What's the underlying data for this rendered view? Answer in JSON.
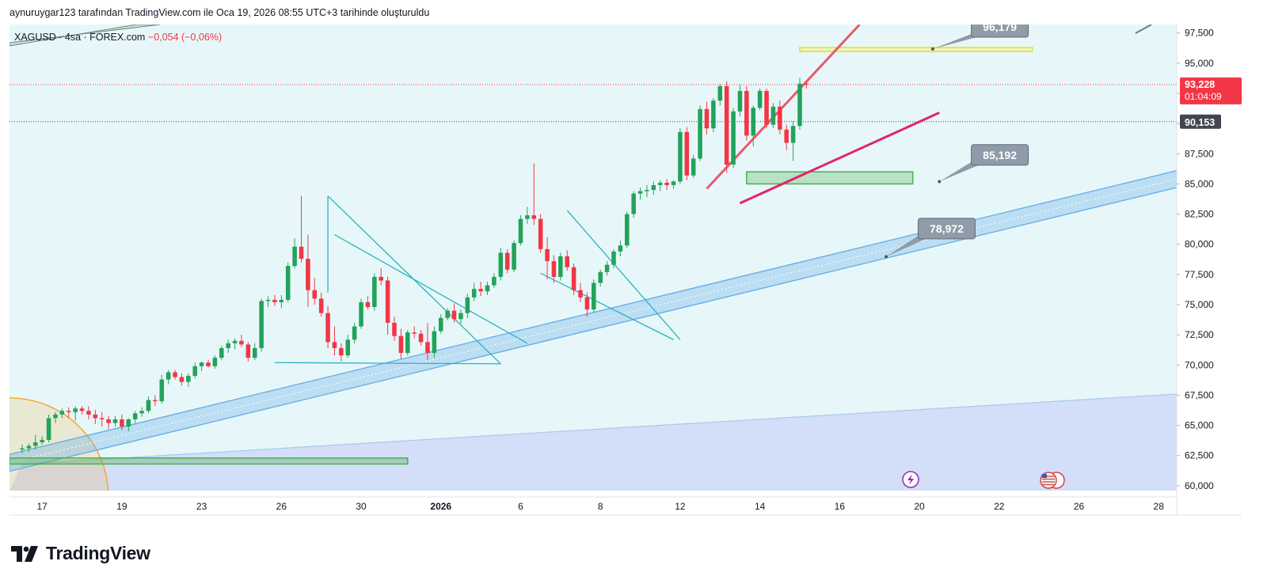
{
  "header": {
    "caption": "aynuruygar123 tarafından TradingView.com ile Oca 19, 2026 08:55 UTC+3 tarihinde oluşturuldu"
  },
  "legend": {
    "symbol": "XAGUSD · 4sa · FOREX.com",
    "change": "−0,054 (−0,06%)"
  },
  "brand": {
    "name": "TradingView"
  },
  "colors": {
    "up": "#22a35a",
    "down": "#f23645",
    "channel": "#6aaee8",
    "wedge_upper": "#e85a6e",
    "wedge_lower": "#e0256a",
    "triangle": "#2bb3c0",
    "zone_green": "#4caf50",
    "zone_yellow": "#e6e64a",
    "fill_cyan": "#e7f7f9",
    "fill_blue": "#d2dcf9",
    "callout_grey": "#8f9ba8",
    "price_current": "#f23645",
    "price_ref": "#434651",
    "arc": "#f5a623"
  },
  "chart_data": {
    "type": "candlestick",
    "symbol": "XAGUSD",
    "timeframe": "4sa",
    "source": "FOREX.com",
    "y_range": [
      59600,
      98200
    ],
    "y_ticks": [
      {
        "value": 97500,
        "label": "97,500"
      },
      {
        "value": 95000,
        "label": "95,000"
      },
      {
        "value": 92500,
        "label": "92,500"
      },
      {
        "value": 90000,
        "label": "90,000"
      },
      {
        "value": 87500,
        "label": "87,500"
      },
      {
        "value": 85000,
        "label": "85,000"
      },
      {
        "value": 82500,
        "label": "82,500"
      },
      {
        "value": 80000,
        "label": "80,000"
      },
      {
        "value": 77500,
        "label": "77,500"
      },
      {
        "value": 75000,
        "label": "75,000"
      },
      {
        "value": 72500,
        "label": "72,500"
      },
      {
        "value": 70000,
        "label": "70,000"
      },
      {
        "value": 67500,
        "label": "67,500"
      },
      {
        "value": 65000,
        "label": "65,000"
      },
      {
        "value": 62500,
        "label": "62,500"
      },
      {
        "value": 60000,
        "label": "60,000"
      }
    ],
    "x_ticks": [
      {
        "index": 3,
        "label": "17",
        "bold": false
      },
      {
        "index": 15,
        "label": "19",
        "bold": false
      },
      {
        "index": 27,
        "label": "23",
        "bold": false
      },
      {
        "index": 39,
        "label": "26",
        "bold": false
      },
      {
        "index": 51,
        "label": "30",
        "bold": false
      },
      {
        "index": 63,
        "label": "2026",
        "bold": true
      },
      {
        "index": 75,
        "label": "6",
        "bold": false
      },
      {
        "index": 87,
        "label": "8",
        "bold": false
      },
      {
        "index": 99,
        "label": "12",
        "bold": false
      },
      {
        "index": 111,
        "label": "14",
        "bold": false
      },
      {
        "index": 123,
        "label": "16",
        "bold": false
      },
      {
        "index": 135,
        "label": "20",
        "bold": false
      },
      {
        "index": 147,
        "label": "22",
        "bold": false
      },
      {
        "index": 159,
        "label": "26",
        "bold": false
      },
      {
        "index": 171,
        "label": "28",
        "bold": false
      }
    ],
    "x_index_range": [
      0,
      173
    ],
    "candles": [
      [
        63000,
        63400,
        62700,
        63100
      ],
      [
        63100,
        63500,
        62800,
        63300
      ],
      [
        63300,
        64200,
        63000,
        63600
      ],
      [
        63600,
        64100,
        63400,
        63800
      ],
      [
        63800,
        65900,
        63600,
        65600
      ],
      [
        65600,
        66100,
        65200,
        65900
      ],
      [
        65900,
        66400,
        65600,
        66200
      ],
      [
        66200,
        66500,
        65600,
        66100
      ],
      [
        66100,
        66600,
        65400,
        66400
      ],
      [
        66400,
        66600,
        65900,
        66200
      ],
      [
        66200,
        66600,
        65500,
        65900
      ],
      [
        65900,
        66300,
        65100,
        65600
      ],
      [
        65600,
        66100,
        64900,
        65500
      ],
      [
        65500,
        65800,
        64700,
        65200
      ],
      [
        65200,
        65800,
        64900,
        65500
      ],
      [
        65500,
        65900,
        64600,
        64900
      ],
      [
        64900,
        65600,
        64500,
        65500
      ],
      [
        65500,
        66200,
        65200,
        66000
      ],
      [
        66000,
        66500,
        65700,
        66200
      ],
      [
        66200,
        67400,
        66000,
        67100
      ],
      [
        67100,
        67500,
        66600,
        67000
      ],
      [
        67000,
        69200,
        66800,
        68800
      ],
      [
        68800,
        69600,
        68400,
        69400
      ],
      [
        69400,
        69600,
        68800,
        69000
      ],
      [
        69000,
        69300,
        68300,
        68600
      ],
      [
        68600,
        69300,
        68200,
        69100
      ],
      [
        69100,
        70200,
        68900,
        69900
      ],
      [
        69900,
        70300,
        69500,
        70200
      ],
      [
        70200,
        70400,
        69800,
        69900
      ],
      [
        69900,
        70800,
        69700,
        70600
      ],
      [
        70600,
        71600,
        70400,
        71400
      ],
      [
        71400,
        72100,
        71000,
        71800
      ],
      [
        71800,
        72200,
        71300,
        72000
      ],
      [
        72000,
        72500,
        71500,
        71700
      ],
      [
        71700,
        71900,
        70300,
        70600
      ],
      [
        70600,
        71800,
        70400,
        71400
      ],
      [
        71400,
        75500,
        71100,
        75300
      ],
      [
        75300,
        75700,
        74800,
        75400
      ],
      [
        75400,
        75800,
        74900,
        75200
      ],
      [
        75200,
        75800,
        74700,
        75400
      ],
      [
        75400,
        78500,
        75200,
        78200
      ],
      [
        78200,
        80500,
        78000,
        79800
      ],
      [
        79800,
        84000,
        78500,
        78800
      ],
      [
        78800,
        80800,
        74800,
        76200
      ],
      [
        76200,
        77200,
        75000,
        75500
      ],
      [
        75500,
        76000,
        74000,
        74300
      ],
      [
        74300,
        74900,
        71400,
        71900
      ],
      [
        71900,
        73200,
        70800,
        71400
      ],
      [
        71400,
        71800,
        70300,
        70800
      ],
      [
        70800,
        72500,
        70600,
        72100
      ],
      [
        72100,
        73500,
        71800,
        73200
      ],
      [
        73200,
        75500,
        73000,
        75200
      ],
      [
        75200,
        75700,
        74600,
        74800
      ],
      [
        74800,
        77600,
        74500,
        77300
      ],
      [
        77300,
        78000,
        76600,
        77000
      ],
      [
        77000,
        77300,
        72500,
        73500
      ],
      [
        73500,
        74000,
        72000,
        72400
      ],
      [
        72400,
        73000,
        70500,
        71000
      ],
      [
        71000,
        72900,
        70800,
        72700
      ],
      [
        72700,
        73200,
        72200,
        72600
      ],
      [
        72600,
        72900,
        71600,
        71900
      ],
      [
        71900,
        73500,
        70400,
        71000
      ],
      [
        71000,
        73200,
        70600,
        72800
      ],
      [
        72800,
        74200,
        72600,
        73900
      ],
      [
        73900,
        74700,
        73700,
        74500
      ],
      [
        74500,
        75100,
        73500,
        73800
      ],
      [
        73800,
        74600,
        73400,
        74300
      ],
      [
        74300,
        75900,
        73900,
        75600
      ],
      [
        75600,
        76800,
        75300,
        76300
      ],
      [
        76300,
        76900,
        75700,
        76100
      ],
      [
        76100,
        76900,
        75800,
        76600
      ],
      [
        76600,
        77600,
        76400,
        77300
      ],
      [
        77300,
        79700,
        77000,
        79300
      ],
      [
        79300,
        79600,
        77600,
        77900
      ],
      [
        77900,
        80300,
        77700,
        80100
      ],
      [
        80100,
        82400,
        79900,
        82100
      ],
      [
        82100,
        83100,
        81700,
        82400
      ],
      [
        82400,
        86700,
        81600,
        82100
      ],
      [
        82100,
        82500,
        79300,
        79600
      ],
      [
        79600,
        80600,
        77100,
        78600
      ],
      [
        78600,
        79100,
        76800,
        77300
      ],
      [
        77300,
        79300,
        77000,
        79000
      ],
      [
        79000,
        79500,
        77800,
        78100
      ],
      [
        78100,
        78400,
        75800,
        76200
      ],
      [
        76200,
        76800,
        75200,
        75600
      ],
      [
        75600,
        76000,
        74000,
        74600
      ],
      [
        74600,
        77100,
        74400,
        76800
      ],
      [
        76800,
        77900,
        76500,
        77700
      ],
      [
        77700,
        78600,
        77400,
        78300
      ],
      [
        78300,
        79600,
        78000,
        79400
      ],
      [
        79400,
        80300,
        79000,
        79900
      ],
      [
        79900,
        82700,
        79700,
        82500
      ],
      [
        82500,
        84400,
        82200,
        84200
      ],
      [
        84200,
        84700,
        83700,
        84400
      ],
      [
        84400,
        84900,
        83900,
        84500
      ],
      [
        84500,
        85200,
        84100,
        84900
      ],
      [
        84900,
        85300,
        84400,
        85100
      ],
      [
        85100,
        85400,
        84500,
        84900
      ],
      [
        84900,
        85300,
        84600,
        85200
      ],
      [
        85200,
        89600,
        85000,
        89300
      ],
      [
        89300,
        89700,
        85300,
        85700
      ],
      [
        85700,
        87400,
        85500,
        87100
      ],
      [
        87100,
        91500,
        86900,
        91200
      ],
      [
        91200,
        91800,
        89100,
        89600
      ],
      [
        89600,
        92100,
        89300,
        91900
      ],
      [
        91900,
        93300,
        91500,
        93100
      ],
      [
        93100,
        93500,
        85900,
        86600
      ],
      [
        86600,
        91300,
        86300,
        91000
      ],
      [
        91000,
        93200,
        90600,
        92700
      ],
      [
        92700,
        93100,
        88600,
        89000
      ],
      [
        89000,
        91500,
        88100,
        91300
      ],
      [
        91300,
        92900,
        91100,
        92700
      ],
      [
        92700,
        92900,
        89600,
        89900
      ],
      [
        89900,
        91700,
        89600,
        91400
      ],
      [
        91400,
        91900,
        89100,
        89500
      ],
      [
        89500,
        89900,
        87800,
        88400
      ],
      [
        88400,
        90200,
        86900,
        89800
      ],
      [
        89800,
        93800,
        89500,
        93300
      ],
      [
        93300,
        93500,
        92900,
        93228
      ]
    ],
    "last_price": {
      "value": 93228,
      "label": "93,228",
      "countdown": "01:04:09"
    },
    "ref_price": {
      "value": 90153,
      "label": "90,153"
    },
    "annotations": {
      "channel": {
        "p1": [
          0,
          61900
        ],
        "p2": [
          173,
          85400
        ],
        "band": 700
      },
      "lower_fill": {
        "p1": [
          0,
          61800
        ],
        "p2": [
          173,
          67600
        ],
        "bottom": 59600
      },
      "wedge_upper": {
        "p1": [
          103,
          84600
        ],
        "p2": [
          126,
          98200
        ]
      },
      "wedge_lower": {
        "p1": [
          108,
          83400
        ],
        "p2": [
          138,
          90900
        ]
      },
      "triangle_1": {
        "top": [
          46,
          84000
        ],
        "bottom": [
          72,
          70100
        ],
        "upper": [
          [
            47,
            80800
          ],
          [
            76,
            71800
          ]
        ],
        "base": [
          [
            38,
            70200
          ],
          [
            72,
            70100
          ]
        ]
      },
      "triangle_2": {
        "top": [
          82,
          82800
        ],
        "bottom": [
          99,
          72100
        ],
        "upper": [
          [
            78,
            77600
          ],
          [
            98,
            72100
          ]
        ]
      },
      "green_zone_low": {
        "x": [
          0,
          58
        ],
        "y": [
          61800,
          62300
        ]
      },
      "green_zone_high": {
        "x": [
          109,
          134
        ],
        "y": [
          85000,
          86000
        ]
      },
      "yellow_zone": {
        "x": [
          117,
          152
        ],
        "y": [
          96000,
          96300
        ]
      },
      "callouts": [
        {
          "label": "85,192",
          "anchor": [
            138,
            85192
          ],
          "box_at": [
            144,
            87400
          ]
        },
        {
          "label": "78,972",
          "anchor": [
            130,
            78972
          ],
          "box_at": [
            136,
            81300
          ]
        },
        {
          "label": "96,179",
          "anchor": [
            137,
            96179
          ],
          "box_at": [
            144,
            98000
          ]
        }
      ],
      "arc": {
        "center": [
          0,
          60000
        ],
        "radius_px": 125
      }
    }
  }
}
